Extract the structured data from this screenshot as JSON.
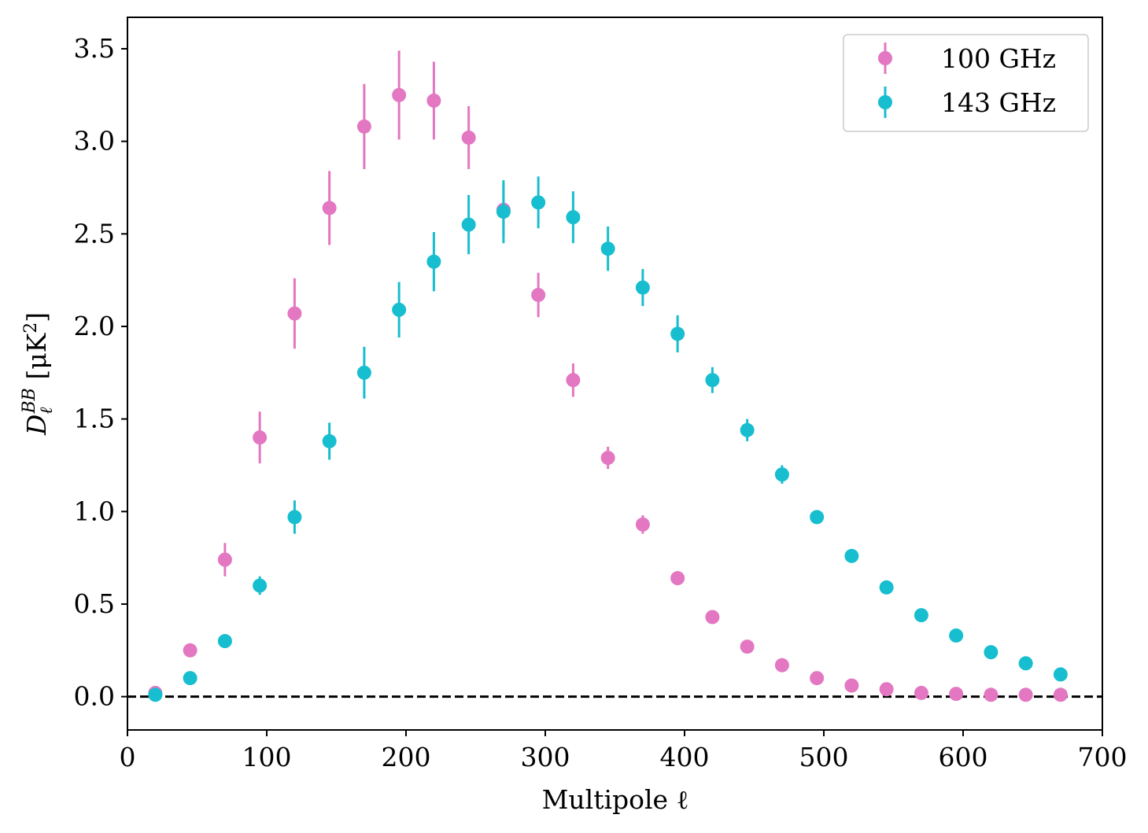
{
  "chart_data": {
    "type": "scatter",
    "xlabel": "Multipole ℓ",
    "ylabel": {
      "symbol": "D",
      "subscript": "ℓ",
      "superscript": "BB",
      "unit": " [μK",
      "unit_sup": "2",
      "unit_close": "]"
    },
    "xlim": [
      0,
      700
    ],
    "ylim": [
      -0.18,
      3.67
    ],
    "x_ticks": [
      "0",
      "100",
      "200",
      "300",
      "400",
      "500",
      "600",
      "700"
    ],
    "y_ticks": [
      "0.0",
      "0.5",
      "1.0",
      "1.5",
      "2.0",
      "2.5",
      "3.0",
      "3.5"
    ],
    "grid": false,
    "legend_position": "top-right",
    "reference_line": {
      "y": 0,
      "style": "dashed",
      "color": "#000000"
    },
    "x": [
      20,
      45,
      70,
      95,
      120,
      145,
      170,
      195,
      220,
      245,
      270,
      295,
      320,
      345,
      370,
      395,
      420,
      445,
      470,
      495,
      520,
      545,
      570,
      595,
      620,
      645,
      670
    ],
    "series": [
      {
        "name": "100 GHz",
        "color": "#e377c2",
        "values": [
          0.02,
          0.25,
          0.74,
          1.4,
          2.07,
          2.64,
          3.08,
          3.25,
          3.22,
          3.02,
          2.63,
          2.17,
          1.71,
          1.29,
          0.93,
          0.64,
          0.43,
          0.27,
          0.17,
          0.1,
          0.06,
          0.04,
          0.02,
          0.015,
          0.01,
          0.01,
          0.01
        ],
        "errors": [
          0.01,
          0.02,
          0.09,
          0.14,
          0.19,
          0.2,
          0.23,
          0.24,
          0.21,
          0.17,
          0.14,
          0.12,
          0.09,
          0.06,
          0.05,
          0.02,
          0.01,
          0.01,
          0.01,
          0.01,
          0.01,
          0.005,
          0.005,
          0.005,
          0.005,
          0.005,
          0.005
        ]
      },
      {
        "name": "143 GHz",
        "color": "#17becf",
        "values": [
          0.01,
          0.1,
          0.3,
          0.6,
          0.97,
          1.38,
          1.75,
          2.09,
          2.35,
          2.55,
          2.62,
          2.67,
          2.59,
          2.42,
          2.21,
          1.96,
          1.71,
          1.44,
          1.2,
          0.97,
          0.76,
          0.59,
          0.44,
          0.33,
          0.24,
          0.18,
          0.12
        ],
        "errors": [
          0.01,
          0.02,
          0.03,
          0.05,
          0.09,
          0.1,
          0.14,
          0.15,
          0.16,
          0.16,
          0.17,
          0.14,
          0.14,
          0.12,
          0.1,
          0.1,
          0.07,
          0.06,
          0.05,
          0.02,
          0.02,
          0.01,
          0.01,
          0.01,
          0.01,
          0.01,
          0.01
        ]
      }
    ]
  }
}
